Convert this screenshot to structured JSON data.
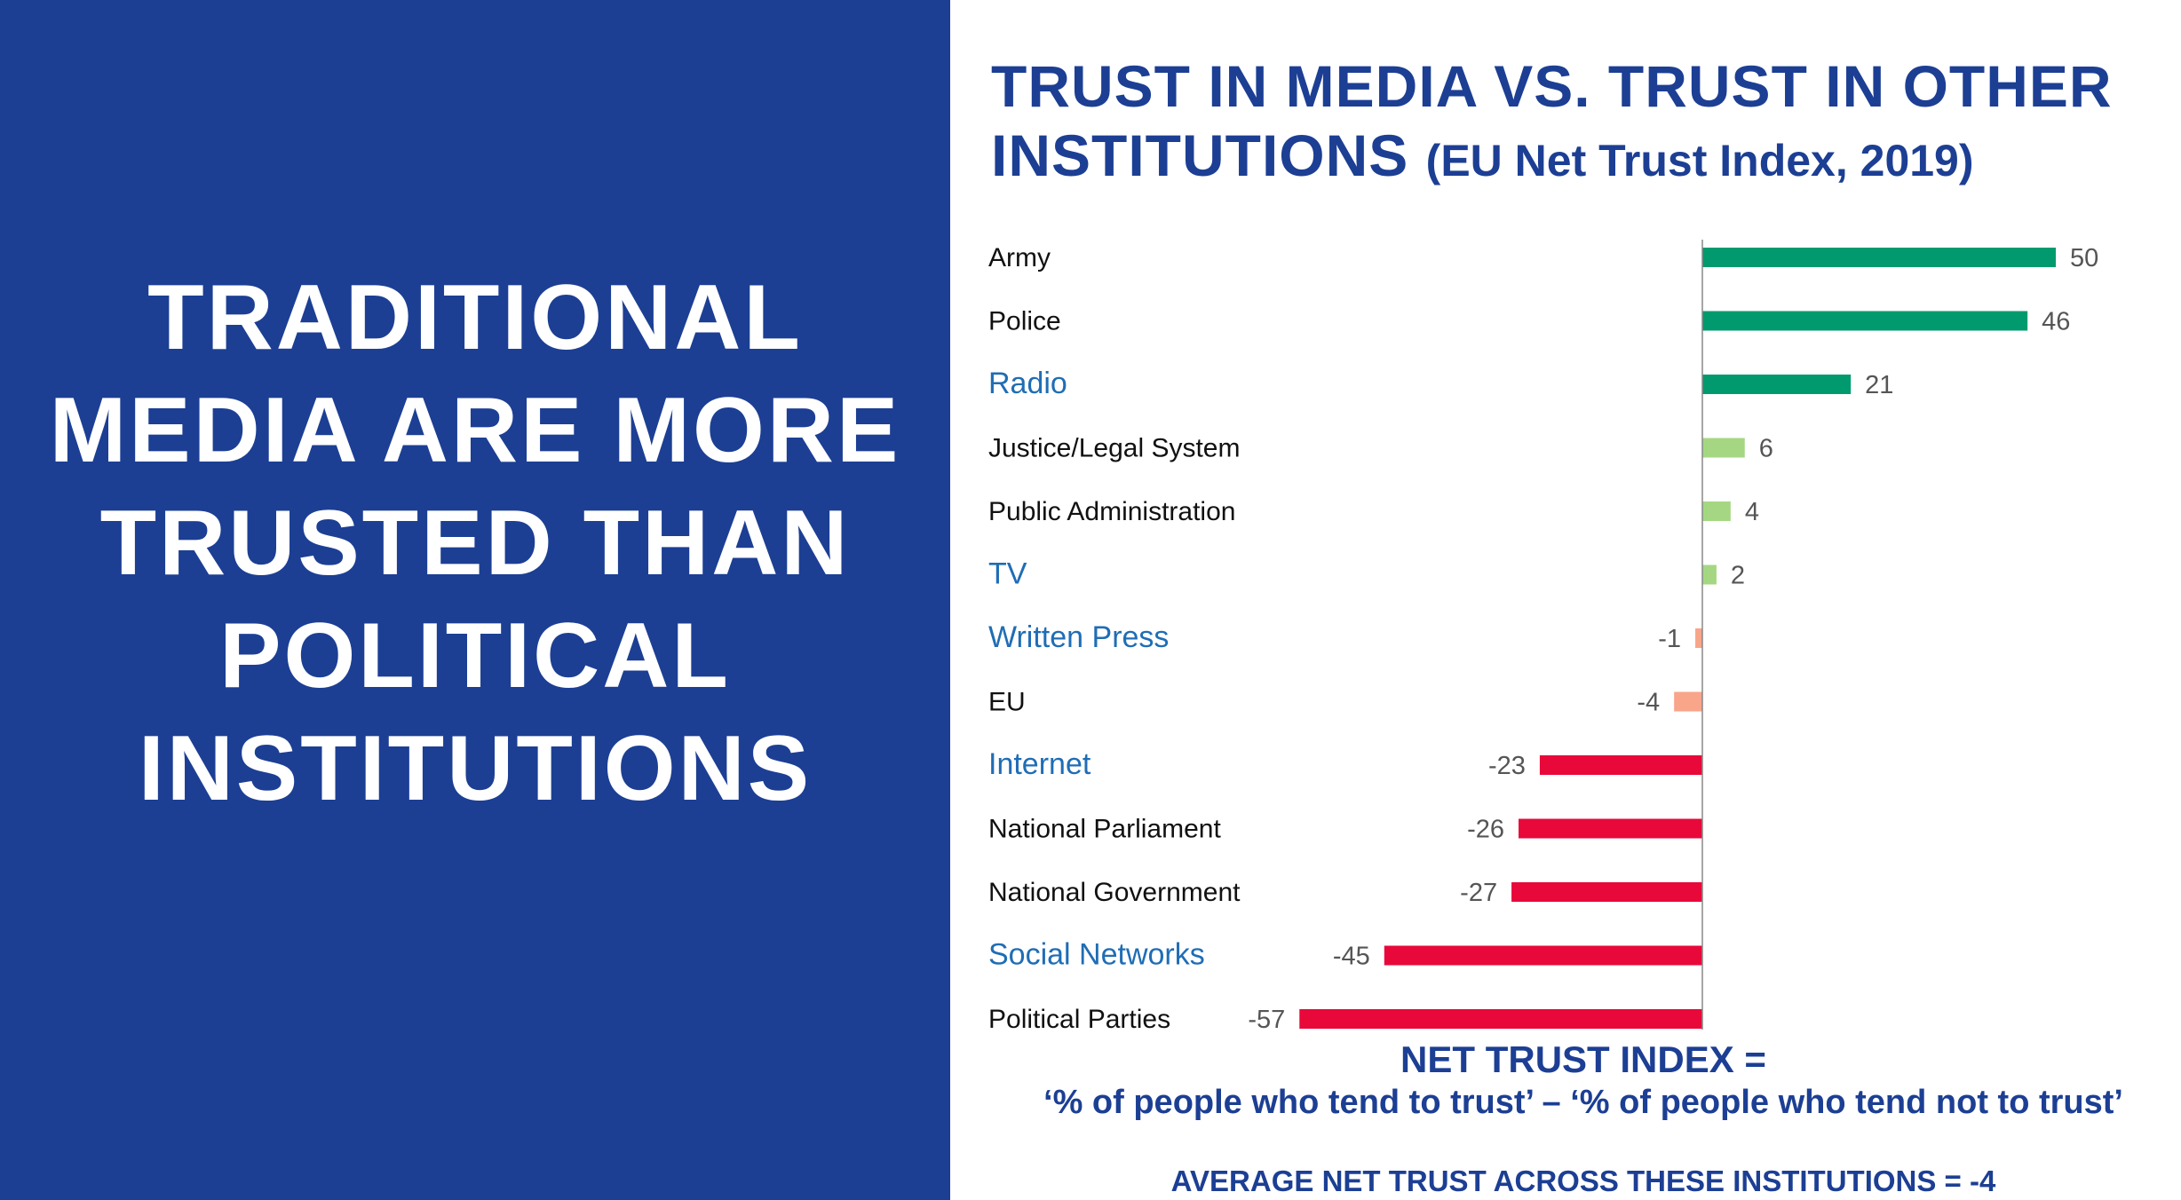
{
  "headline": [
    "TRADITIONAL",
    "MEDIA ARE MORE",
    "TRUSTED THAN",
    "POLITICAL",
    "INSTITUTIONS"
  ],
  "title": {
    "line1": "TRUST IN MEDIA VS. TRUST IN OTHER",
    "line2_main": "INSTITUTIONS",
    "line2_sub": "(EU Net Trust Index, 2019)"
  },
  "chart_data": {
    "type": "bar",
    "orientation": "horizontal",
    "categories": [
      "Army",
      "Police",
      "Radio",
      "Justice/Legal System",
      "Public Administration",
      "TV",
      "Written Press",
      "EU",
      "Internet",
      "National Parliament",
      "National Government",
      "Social Networks",
      "Political Parties"
    ],
    "values": [
      50,
      46,
      21,
      6,
      4,
      2,
      -1,
      -4,
      -23,
      -26,
      -27,
      -45,
      -57
    ],
    "media_categories": [
      "Radio",
      "TV",
      "Written Press",
      "Internet",
      "Social Networks"
    ],
    "data_labels": true,
    "grid": false,
    "colors": {
      "strong_positive": "#009a6e",
      "weak_positive": "#a5d783",
      "weak_negative": "#f9a58a",
      "strong_negative": "#e8083a",
      "media_label": "#1f6db5",
      "other_label": "#111111"
    }
  },
  "formula": {
    "line1": "NET TRUST INDEX =",
    "line2": "‘% of people who tend to trust’ – ‘% of people who tend not to trust’"
  },
  "average": "AVERAGE NET TRUST ACROSS THESE INSTITUTIONS = -4"
}
